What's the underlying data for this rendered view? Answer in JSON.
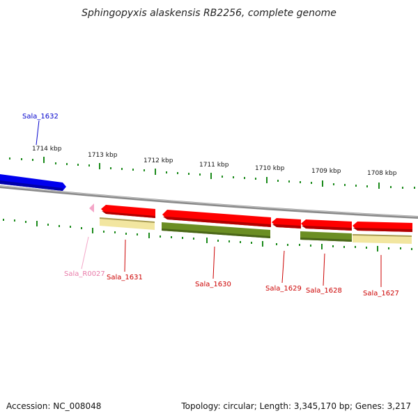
{
  "title": "Sphingopyxis alaskensis RB2256, complete genome",
  "footer": {
    "accession": "Accession: NC_008048",
    "topology": "Topology: circular; Length: 3,345,170 bp; Genes: 3,217"
  },
  "colors": {
    "cds": "#ff0000",
    "cds_other_strand": "#0000ff",
    "rna": "#f4a6c8",
    "cog_yellow": "#f2e6a0",
    "cog_green": "#6b8e23",
    "tick": "#1a8a1a",
    "backbone": "#8a8a8a"
  },
  "scale_labels": [
    "1714 kbp",
    "1713 kbp",
    "1712 kbp",
    "1711 kbp",
    "1710 kbp",
    "1709 kbp",
    "1708 kbp"
  ],
  "genes": [
    {
      "label": "Sala_1632",
      "color": "#0000cc"
    },
    {
      "label": "Sala_R0027",
      "color": "#e87aa8"
    },
    {
      "label": "Sala_1631",
      "color": "#cc0000"
    },
    {
      "label": "Sala_1630",
      "color": "#cc0000"
    },
    {
      "label": "Sala_1629",
      "color": "#cc0000"
    },
    {
      "label": "Sala_1628",
      "color": "#cc0000"
    },
    {
      "label": "Sala_1627",
      "color": "#cc0000"
    }
  ]
}
